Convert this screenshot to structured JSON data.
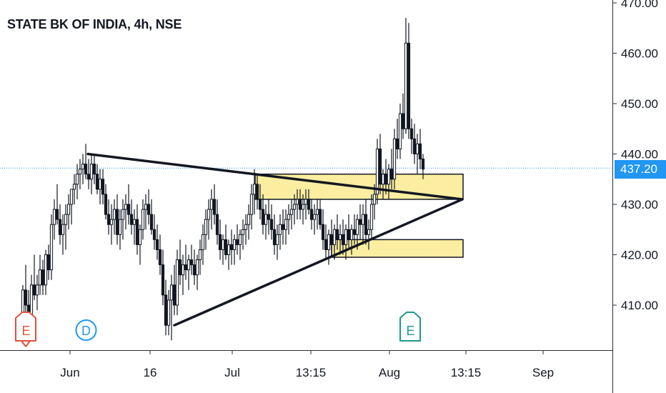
{
  "header": {
    "title": "STATE BK OF INDIA, 4h, NSE"
  },
  "last_price_label": "437.20",
  "event_markers": [
    {
      "name": "earnings-marker-1",
      "letter": "E",
      "color": "#e0523a",
      "x": 36
    },
    {
      "name": "dividend-marker",
      "letter": "D",
      "color": "#2196f3",
      "x": 120
    },
    {
      "name": "earnings-marker-2",
      "letter": "E",
      "color": "#1e9a8e",
      "x": 574
    }
  ],
  "chart_data": {
    "type": "candlestick",
    "title": "STATE BK OF INDIA, 4h, NSE",
    "ylim": [
      400,
      470
    ],
    "y_ticks": [
      470,
      460,
      450,
      440,
      430,
      420,
      410
    ],
    "y_tick_labels": [
      "470.00",
      "460.00",
      "450.00",
      "440.00",
      "430.00",
      "420.00",
      "410.00"
    ],
    "x_tick_labels": [
      {
        "label": "Jun",
        "x": 98
      },
      {
        "label": "16",
        "x": 210
      },
      {
        "label": "Jul",
        "x": 325
      },
      {
        "label": "13:15",
        "x": 435
      },
      {
        "label": "Aug",
        "x": 545
      },
      {
        "label": "13:15",
        "x": 652
      },
      {
        "label": "Sep",
        "x": 760
      }
    ],
    "last_price": 437.2,
    "candles": [
      [
        32,
        404,
        414,
        403,
        413
      ],
      [
        36,
        413,
        418,
        408,
        410
      ],
      [
        40,
        410,
        413,
        405,
        408
      ],
      [
        44,
        408,
        416,
        406,
        414
      ],
      [
        48,
        414,
        420,
        411,
        412
      ],
      [
        52,
        412,
        416,
        409,
        414
      ],
      [
        56,
        414,
        420,
        412,
        417
      ],
      [
        60,
        417,
        419,
        412,
        414
      ],
      [
        64,
        414,
        421,
        412,
        420
      ],
      [
        68,
        420,
        422,
        415,
        417
      ],
      [
        72,
        417,
        428,
        415,
        426
      ],
      [
        76,
        426,
        431,
        423,
        429
      ],
      [
        80,
        429,
        434,
        426,
        427
      ],
      [
        84,
        427,
        430,
        422,
        424
      ],
      [
        88,
        424,
        428,
        420,
        426
      ],
      [
        92,
        426,
        430,
        421,
        428
      ],
      [
        96,
        428,
        432,
        425,
        430
      ],
      [
        100,
        430,
        433,
        426,
        433
      ],
      [
        104,
        433,
        436,
        430,
        434
      ],
      [
        108,
        434,
        438,
        431,
        436
      ],
      [
        112,
        436,
        439,
        433,
        437
      ],
      [
        116,
        437,
        440,
        434,
        438
      ],
      [
        120,
        438,
        442,
        435,
        436
      ],
      [
        124,
        436,
        439,
        433,
        435
      ],
      [
        128,
        435,
        440,
        432,
        438
      ],
      [
        132,
        438,
        440,
        434,
        436
      ],
      [
        136,
        436,
        438,
        432,
        433
      ],
      [
        140,
        433,
        437,
        430,
        435
      ],
      [
        144,
        435,
        437,
        430,
        432
      ],
      [
        148,
        432,
        434,
        427,
        428
      ],
      [
        152,
        428,
        431,
        424,
        426
      ],
      [
        156,
        426,
        430,
        422,
        427
      ],
      [
        160,
        427,
        431,
        424,
        429
      ],
      [
        164,
        429,
        432,
        422,
        424
      ],
      [
        168,
        424,
        429,
        421,
        427
      ],
      [
        172,
        427,
        431,
        423,
        429
      ],
      [
        176,
        429,
        432,
        425,
        430
      ],
      [
        180,
        430,
        434,
        426,
        428
      ],
      [
        184,
        428,
        431,
        424,
        426
      ],
      [
        188,
        426,
        429,
        422,
        427
      ],
      [
        192,
        427,
        430,
        420,
        422
      ],
      [
        196,
        422,
        426,
        418,
        425
      ],
      [
        200,
        425,
        431,
        423,
        429
      ],
      [
        204,
        429,
        432,
        425,
        430
      ],
      [
        208,
        430,
        433,
        426,
        428
      ],
      [
        212,
        428,
        431,
        424,
        425
      ],
      [
        216,
        425,
        428,
        421,
        423
      ],
      [
        220,
        423,
        426,
        419,
        421
      ],
      [
        224,
        421,
        424,
        416,
        418
      ],
      [
        228,
        418,
        421,
        410,
        412
      ],
      [
        232,
        412,
        415,
        404,
        406
      ],
      [
        236,
        406,
        413,
        404,
        411
      ],
      [
        240,
        411,
        416,
        403,
        414
      ],
      [
        244,
        414,
        418,
        408,
        410
      ],
      [
        248,
        410,
        421,
        408,
        419
      ],
      [
        252,
        419,
        423,
        414,
        416
      ],
      [
        256,
        416,
        420,
        412,
        418
      ],
      [
        260,
        418,
        422,
        415,
        417
      ],
      [
        264,
        417,
        420,
        413,
        419
      ],
      [
        268,
        419,
        422,
        416,
        418
      ],
      [
        272,
        418,
        421,
        414,
        416
      ],
      [
        276,
        416,
        420,
        413,
        419
      ],
      [
        280,
        419,
        423,
        416,
        421
      ],
      [
        284,
        421,
        426,
        418,
        424
      ],
      [
        288,
        424,
        429,
        421,
        427
      ],
      [
        292,
        427,
        431,
        423,
        429
      ],
      [
        296,
        429,
        433,
        425,
        431
      ],
      [
        300,
        431,
        434,
        426,
        428
      ],
      [
        304,
        428,
        431,
        422,
        424
      ],
      [
        308,
        424,
        427,
        419,
        421
      ],
      [
        312,
        421,
        424,
        418,
        423
      ],
      [
        316,
        423,
        426,
        419,
        420
      ],
      [
        320,
        420,
        423,
        417,
        422
      ],
      [
        324,
        422,
        425,
        418,
        421
      ],
      [
        328,
        421,
        424,
        418,
        423
      ],
      [
        332,
        423,
        426,
        420,
        422
      ],
      [
        336,
        422,
        425,
        419,
        424
      ],
      [
        340,
        424,
        427,
        421,
        425
      ],
      [
        344,
        425,
        428,
        422,
        426
      ],
      [
        348,
        426,
        430,
        423,
        428
      ],
      [
        352,
        428,
        434,
        425,
        432
      ],
      [
        356,
        432,
        437,
        428,
        434
      ],
      [
        360,
        434,
        436,
        429,
        431
      ],
      [
        364,
        431,
        434,
        427,
        429
      ],
      [
        368,
        429,
        432,
        424,
        426
      ],
      [
        372,
        426,
        430,
        423,
        428
      ],
      [
        376,
        428,
        431,
        424,
        427
      ],
      [
        380,
        427,
        430,
        423,
        425
      ],
      [
        384,
        425,
        428,
        420,
        422
      ],
      [
        388,
        422,
        426,
        419,
        424
      ],
      [
        392,
        424,
        428,
        421,
        426
      ],
      [
        396,
        426,
        429,
        422,
        425
      ],
      [
        400,
        425,
        429,
        422,
        427
      ],
      [
        404,
        427,
        430,
        424,
        428
      ],
      [
        408,
        428,
        431,
        425,
        429
      ],
      [
        412,
        429,
        432,
        426,
        430
      ],
      [
        416,
        430,
        433,
        427,
        431
      ],
      [
        420,
        431,
        433,
        427,
        429
      ],
      [
        424,
        429,
        432,
        426,
        430
      ],
      [
        428,
        430,
        433,
        427,
        431
      ],
      [
        432,
        431,
        433,
        428,
        429
      ],
      [
        436,
        429,
        431,
        425,
        427
      ],
      [
        440,
        427,
        430,
        424,
        428
      ],
      [
        444,
        428,
        431,
        425,
        429
      ],
      [
        448,
        429,
        431,
        425,
        426
      ],
      [
        452,
        426,
        429,
        421,
        423
      ],
      [
        456,
        423,
        426,
        419,
        421
      ],
      [
        460,
        421,
        425,
        418,
        424
      ],
      [
        464,
        424,
        427,
        420,
        422
      ],
      [
        468,
        422,
        426,
        419,
        425
      ],
      [
        472,
        425,
        428,
        421,
        423
      ],
      [
        476,
        423,
        426,
        420,
        424
      ],
      [
        480,
        424,
        427,
        420,
        422
      ],
      [
        484,
        422,
        426,
        419,
        425
      ],
      [
        488,
        425,
        428,
        421,
        423
      ],
      [
        492,
        423,
        426,
        420,
        425
      ],
      [
        496,
        425,
        428,
        422,
        424
      ],
      [
        500,
        424,
        428,
        421,
        427
      ],
      [
        504,
        427,
        430,
        423,
        426
      ],
      [
        508,
        426,
        430,
        422,
        428
      ],
      [
        512,
        428,
        431,
        422,
        424
      ],
      [
        516,
        424,
        427,
        421,
        425
      ],
      [
        520,
        425,
        432,
        423,
        430
      ],
      [
        524,
        430,
        434,
        427,
        432
      ],
      [
        528,
        432,
        443,
        430,
        441
      ],
      [
        532,
        441,
        444,
        432,
        434
      ],
      [
        536,
        434,
        437,
        431,
        436
      ],
      [
        540,
        436,
        439,
        432,
        434
      ],
      [
        544,
        434,
        438,
        431,
        437
      ],
      [
        548,
        437,
        441,
        433,
        435
      ],
      [
        552,
        435,
        445,
        433,
        443
      ],
      [
        556,
        443,
        447,
        439,
        441
      ],
      [
        560,
        441,
        450,
        439,
        448
      ],
      [
        564,
        448,
        452,
        443,
        445
      ],
      [
        568,
        445,
        467,
        444,
        462
      ],
      [
        572,
        462,
        466,
        443,
        445
      ],
      [
        576,
        445,
        447,
        440,
        443
      ],
      [
        580,
        443,
        446,
        438,
        440
      ],
      [
        584,
        440,
        444,
        436,
        442
      ],
      [
        588,
        442,
        445,
        437,
        439
      ],
      [
        592,
        439,
        440,
        435,
        437
      ]
    ],
    "annotations": {
      "trendline_upper": {
        "from": [
          123,
          440
        ],
        "to": [
          647,
          431
        ]
      },
      "trendline_lower": {
        "from": [
          244,
          406
        ],
        "to": [
          647,
          431
        ]
      },
      "zone_upper": {
        "x1": 357,
        "x2": 648,
        "y_low": 431,
        "y_high": 436
      },
      "zone_lower": {
        "x1": 464,
        "x2": 648,
        "y_low": 419.5,
        "y_high": 423
      }
    }
  }
}
